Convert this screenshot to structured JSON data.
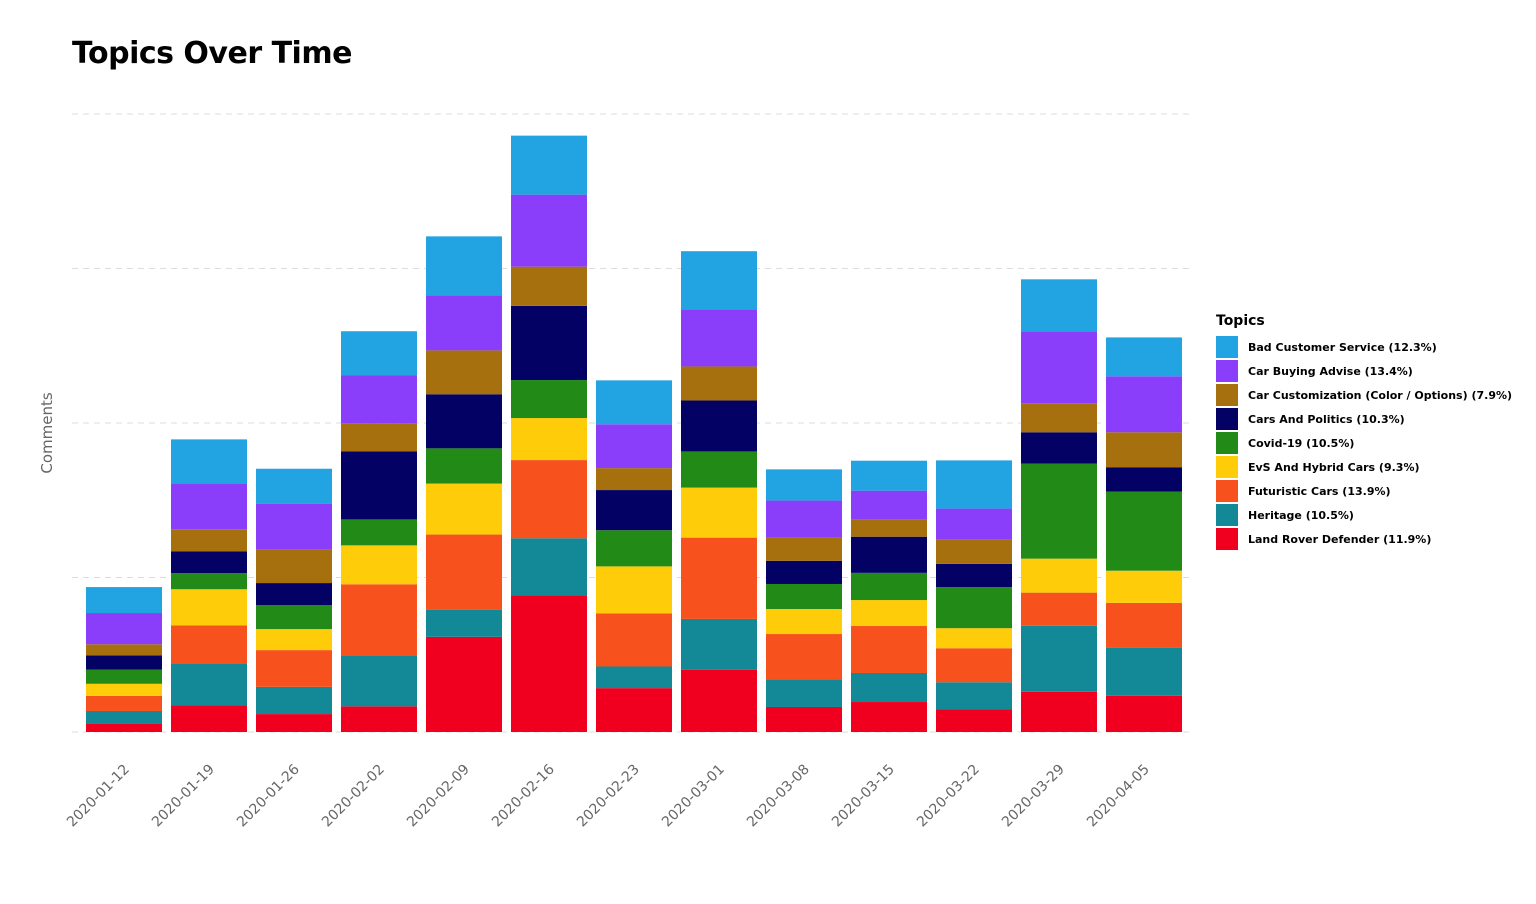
{
  "chart_data": {
    "type": "bar",
    "stacked": true,
    "title": "Topics Over Time",
    "ylabel": "Comments",
    "xlabel": "",
    "legend_title": "Topics",
    "legend_position": "right",
    "grid": "horizontal dashed",
    "ylim": [
      0,
      200
    ],
    "categories": [
      "2020-01-12",
      "2020-01-19",
      "2020-01-26",
      "2020-02-02",
      "2020-02-09",
      "2020-02-16",
      "2020-02-23",
      "2020-03-01",
      "2020-03-08",
      "2020-03-15",
      "2020-03-22",
      "2020-03-29",
      "2020-04-05"
    ],
    "series": [
      {
        "name": "Land Rover Defender (11.9%)",
        "color": "#F0001E",
        "values": [
          2.6,
          8.6,
          5.8,
          8.3,
          30.8,
          44.2,
          14.2,
          20.1,
          8.1,
          9.7,
          7.4,
          13.0,
          11.7
        ]
      },
      {
        "name": "Heritage (10.5%)",
        "color": "#138896",
        "values": [
          4.2,
          13.6,
          8.8,
          16.5,
          8.8,
          18.5,
          7.0,
          16.5,
          9.0,
          9.4,
          8.7,
          21.4,
          15.5
        ]
      },
      {
        "name": "Futuristic Cars (13.9%)",
        "color": "#F7521D",
        "values": [
          4.9,
          12.3,
          11.9,
          23.0,
          24.3,
          25.3,
          17.2,
          26.3,
          14.6,
          15.2,
          11.0,
          10.7,
          14.6
        ]
      },
      {
        "name": "EvS And Hybrid Cars (9.3%)",
        "color": "#FFCC0A",
        "values": [
          3.9,
          11.7,
          6.8,
          12.6,
          16.5,
          13.6,
          15.2,
          16.2,
          8.1,
          8.4,
          6.5,
          11.0,
          10.4
        ]
      },
      {
        "name": "Covid-19 (10.5%)",
        "color": "#228B18",
        "values": [
          4.6,
          5.2,
          7.8,
          8.4,
          11.4,
          12.3,
          11.7,
          11.7,
          8.1,
          8.8,
          13.3,
          30.8,
          25.6
        ]
      },
      {
        "name": "Cars And Politics (10.3%)",
        "color": "#030264",
        "values": [
          4.6,
          7.1,
          7.1,
          22.0,
          17.5,
          24.0,
          13.0,
          16.5,
          7.5,
          11.7,
          7.5,
          10.1,
          7.8
        ]
      },
      {
        "name": "Car Customization (Color / Options) (7.9%)",
        "color": "#A6700E",
        "values": [
          3.6,
          7.1,
          11.0,
          9.1,
          14.2,
          12.7,
          7.1,
          11.0,
          7.5,
          5.5,
          7.8,
          9.4,
          11.4
        ]
      },
      {
        "name": "Car Buying Advise (13.4%)",
        "color": "#8A3EFA",
        "values": [
          10.1,
          14.9,
          14.6,
          15.6,
          17.8,
          23.3,
          14.2,
          18.5,
          12.0,
          9.4,
          10.1,
          23.3,
          18.1
        ]
      },
      {
        "name": "Bad Customer Service (12.3%)",
        "color": "#22A3E2",
        "values": [
          8.4,
          14.2,
          11.4,
          14.2,
          19.1,
          19.1,
          14.2,
          18.8,
          10.1,
          9.7,
          15.6,
          16.8,
          12.6
        ]
      }
    ]
  }
}
